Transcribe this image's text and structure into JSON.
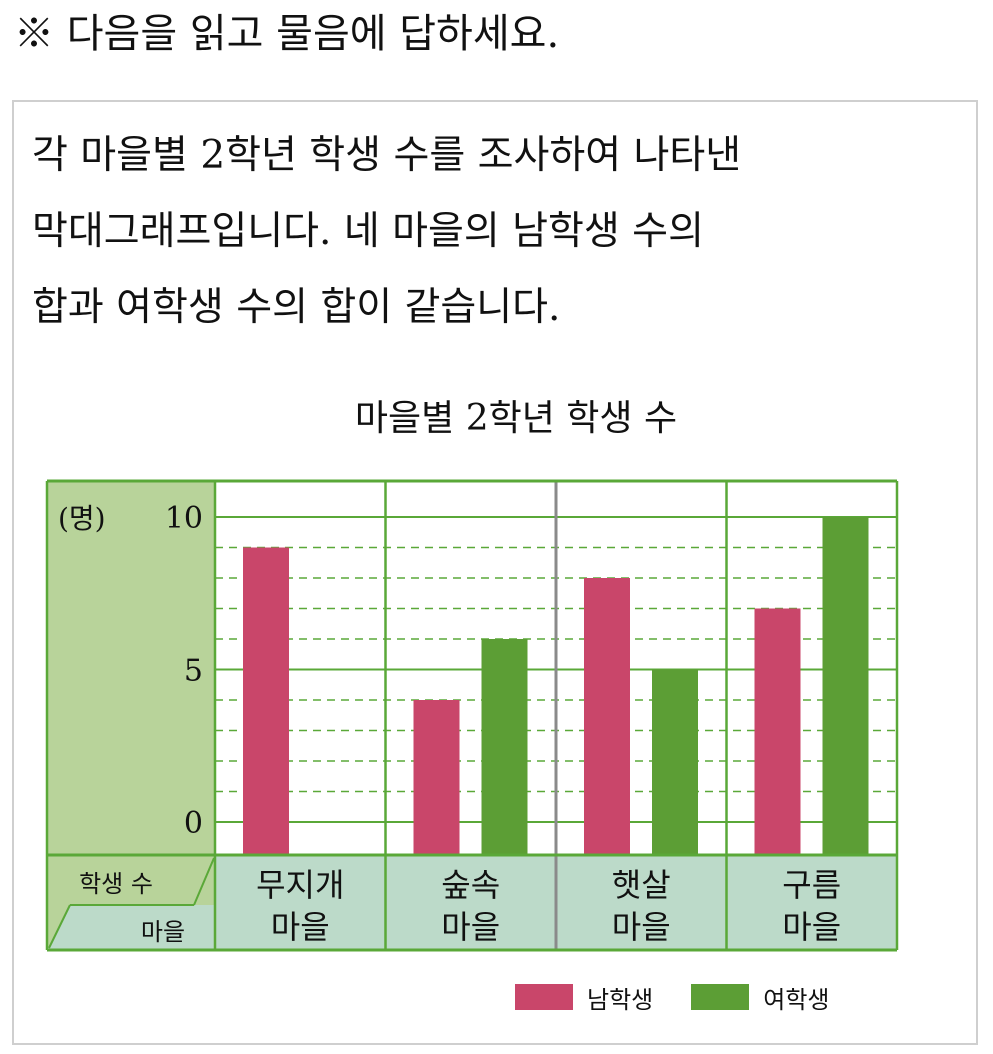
{
  "instruction": "※ 다음을 읽고 물음에 답하세요.",
  "description": {
    "lines": [
      "각 마을별 2학년 학생 수를 조사하여 나타낸",
      "막대그래프입니다. 네 마을의 남학생 수의",
      "합과 여학생 수의 합이 같습니다."
    ]
  },
  "chart_data": {
    "type": "bar",
    "title": "마을별 2학년 학생 수",
    "unit_label": "(명)",
    "corner_header": {
      "top": "학생 수",
      "bottom": "마을"
    },
    "categories": [
      [
        "무지개",
        "마을"
      ],
      [
        "숲속",
        "마을"
      ],
      [
        "햇살",
        "마을"
      ],
      [
        "구름",
        "마을"
      ]
    ],
    "series": [
      {
        "name": "남학생",
        "color": "#c9466a",
        "values": [
          9,
          4,
          8,
          7
        ]
      },
      {
        "name": "여학생",
        "color": "#5c9e35",
        "values": [
          null,
          6,
          5,
          10
        ]
      }
    ],
    "ylim": [
      0,
      10
    ],
    "y_ticks": [
      0,
      5,
      10
    ],
    "grid": "major solid every 5, minor dashed every 1",
    "colors": {
      "axis_panel": "#b8d39a",
      "category_panel": "#bcdac9",
      "grid": "#5aa838"
    }
  }
}
